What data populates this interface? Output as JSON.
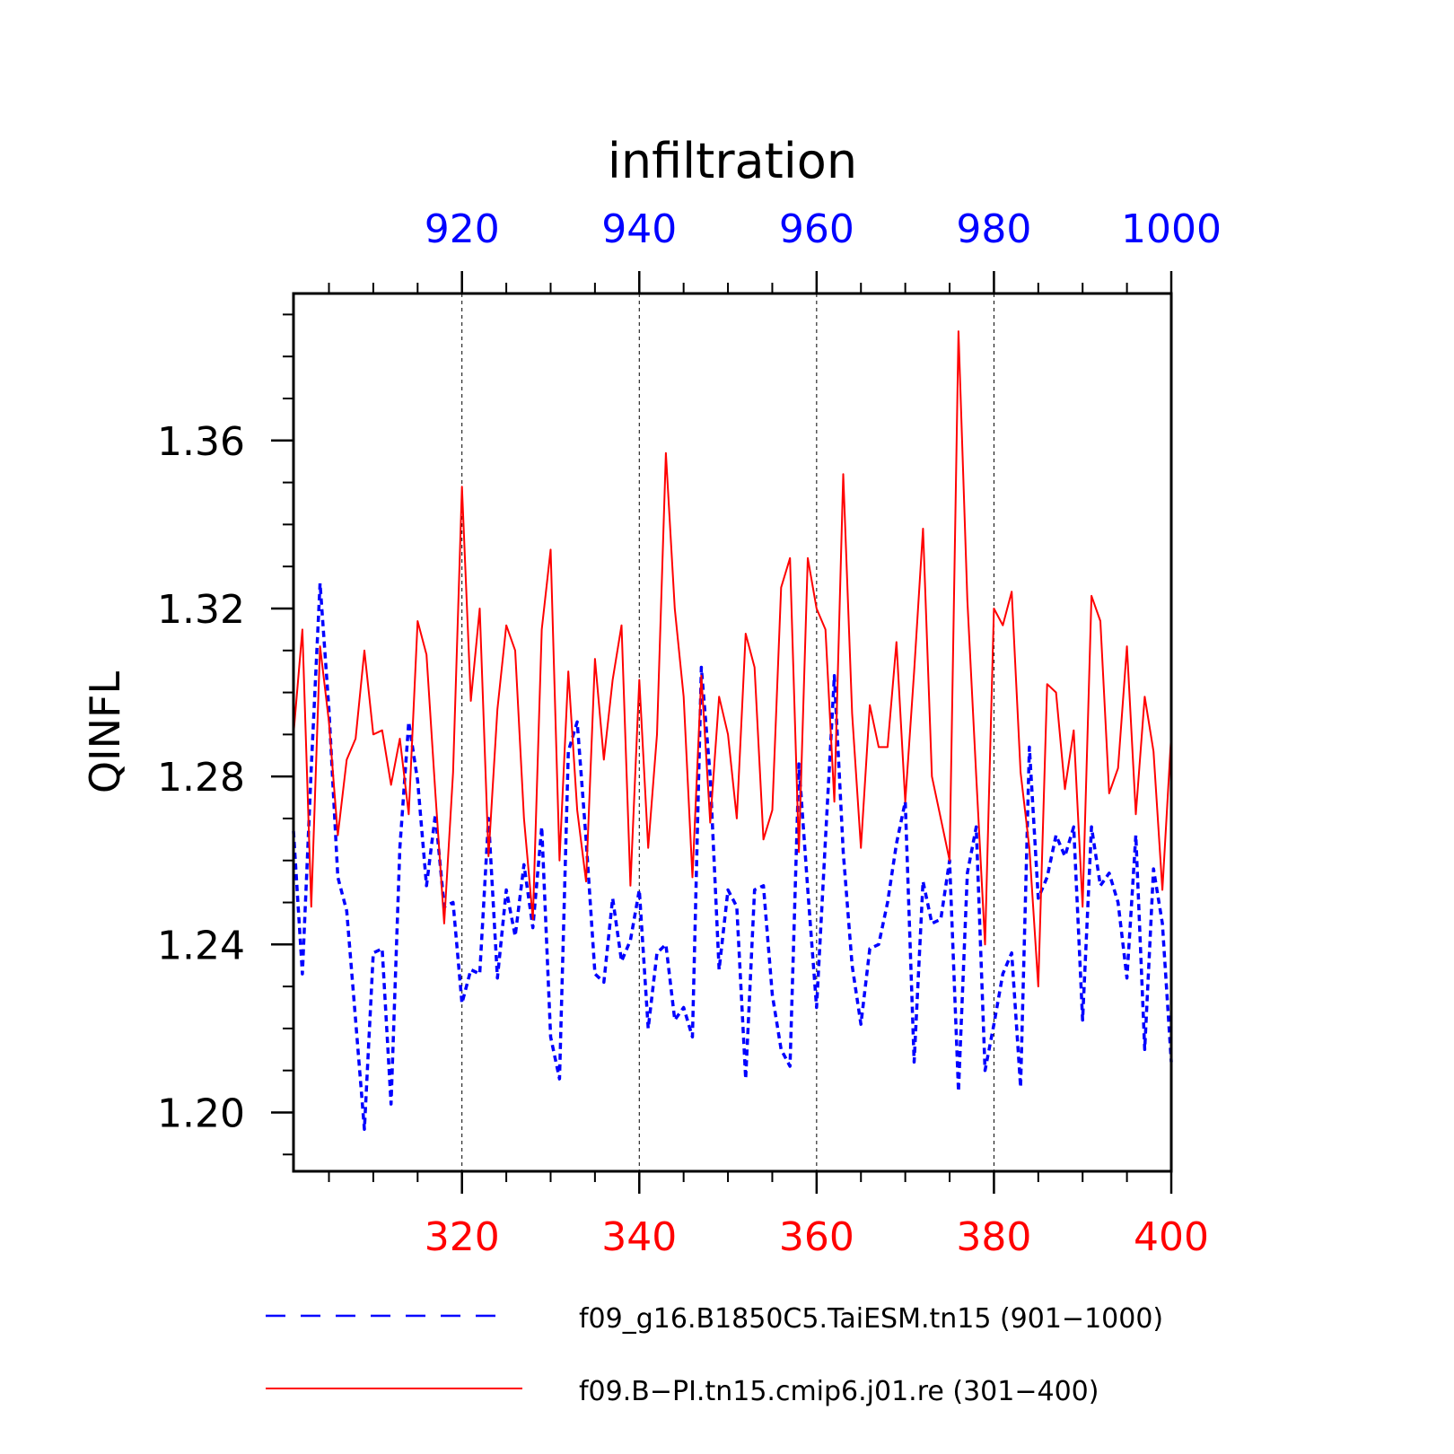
{
  "chart_data": {
    "type": "line",
    "title": "infiltration",
    "ylabel": "QINFL",
    "ylim": [
      1.186,
      1.395
    ],
    "yticks": [
      1.2,
      1.24,
      1.28,
      1.32,
      1.36
    ],
    "ytick_labels": [
      "1.20",
      "1.24",
      "1.28",
      "1.32",
      "1.36"
    ],
    "grid": "vertical dashed at major x ticks",
    "bottom_axis": {
      "color": "#ff0000",
      "range": [
        301,
        400
      ],
      "ticks": [
        320,
        340,
        360,
        380,
        400
      ],
      "tick_labels": [
        "320",
        "340",
        "360",
        "380",
        "400"
      ]
    },
    "top_axis": {
      "color": "#0000ff",
      "range": [
        901,
        1000
      ],
      "ticks": [
        920,
        940,
        960,
        980,
        1000
      ],
      "tick_labels": [
        "920",
        "940",
        "960",
        "980",
        "1000"
      ]
    },
    "legend_position": "bottom",
    "series": [
      {
        "name": "f09_g16.B1850C5.TaiESM.tn15 (901−1000)",
        "color": "#0000ff",
        "style": "dashed",
        "axis": "top",
        "x_start": 901,
        "values": [
          1.267,
          1.233,
          1.282,
          1.326,
          1.296,
          1.256,
          1.248,
          1.222,
          1.196,
          1.238,
          1.239,
          1.202,
          1.263,
          1.293,
          1.279,
          1.254,
          1.271,
          1.249,
          1.25,
          1.226,
          1.234,
          1.233,
          1.27,
          1.232,
          1.253,
          1.242,
          1.259,
          1.244,
          1.268,
          1.218,
          1.208,
          1.286,
          1.293,
          1.265,
          1.233,
          1.231,
          1.251,
          1.236,
          1.241,
          1.253,
          1.22,
          1.238,
          1.24,
          1.222,
          1.225,
          1.218,
          1.306,
          1.28,
          1.234,
          1.253,
          1.249,
          1.208,
          1.253,
          1.254,
          1.228,
          1.215,
          1.211,
          1.283,
          1.253,
          1.225,
          1.265,
          1.304,
          1.262,
          1.235,
          1.221,
          1.239,
          1.24,
          1.25,
          1.264,
          1.274,
          1.212,
          1.255,
          1.245,
          1.246,
          1.26,
          1.205,
          1.257,
          1.268,
          1.21,
          1.221,
          1.233,
          1.238,
          1.206,
          1.287,
          1.251,
          1.256,
          1.266,
          1.261,
          1.268,
          1.222,
          1.268,
          1.254,
          1.257,
          1.25,
          1.232,
          1.266,
          1.215,
          1.258,
          1.245,
          1.212
        ]
      },
      {
        "name": "f09.B−PI.tn15.cmip6.j01.re (301−400)",
        "color": "#ff0000",
        "style": "solid",
        "axis": "bottom",
        "x_start": 301,
        "values": [
          1.29,
          1.315,
          1.249,
          1.311,
          1.293,
          1.266,
          1.284,
          1.289,
          1.31,
          1.29,
          1.291,
          1.278,
          1.289,
          1.271,
          1.317,
          1.309,
          1.276,
          1.245,
          1.281,
          1.349,
          1.298,
          1.32,
          1.261,
          1.296,
          1.316,
          1.31,
          1.27,
          1.246,
          1.315,
          1.334,
          1.26,
          1.305,
          1.272,
          1.255,
          1.308,
          1.284,
          1.303,
          1.316,
          1.254,
          1.303,
          1.263,
          1.29,
          1.357,
          1.32,
          1.299,
          1.256,
          1.304,
          1.269,
          1.299,
          1.29,
          1.27,
          1.314,
          1.306,
          1.265,
          1.272,
          1.325,
          1.332,
          1.262,
          1.332,
          1.32,
          1.315,
          1.274,
          1.352,
          1.295,
          1.263,
          1.297,
          1.287,
          1.287,
          1.312,
          1.274,
          1.305,
          1.339,
          1.28,
          1.27,
          1.26,
          1.386,
          1.322,
          1.28,
          1.24,
          1.32,
          1.316,
          1.324,
          1.281,
          1.263,
          1.23,
          1.302,
          1.3,
          1.277,
          1.291,
          1.249,
          1.323,
          1.317,
          1.276,
          1.282,
          1.311,
          1.271,
          1.299,
          1.286,
          1.253,
          1.29
        ]
      }
    ]
  }
}
